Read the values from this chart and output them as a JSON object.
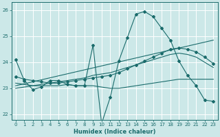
{
  "xlabel": "Humidex (Indice chaleur)",
  "bg_color": "#cce8e8",
  "grid_color": "#ffffff",
  "line_color": "#1a6b6b",
  "xlim": [
    -0.5,
    23.5
  ],
  "ylim": [
    21.8,
    26.3
  ],
  "yticks": [
    22,
    23,
    24,
    25,
    26
  ],
  "xticks": [
    0,
    1,
    2,
    3,
    4,
    5,
    6,
    7,
    8,
    9,
    10,
    11,
    12,
    13,
    14,
    15,
    16,
    17,
    18,
    19,
    20,
    21,
    22,
    23
  ],
  "line1_x": [
    0,
    1,
    2,
    3,
    4,
    5,
    6,
    7,
    8,
    9,
    10,
    11,
    12,
    13,
    14,
    15,
    16,
    17,
    18,
    19,
    20,
    21,
    22,
    23
  ],
  "line1_y": [
    24.1,
    23.3,
    22.95,
    23.05,
    23.3,
    23.3,
    23.15,
    23.1,
    23.1,
    24.65,
    21.65,
    22.65,
    24.05,
    24.95,
    25.85,
    25.95,
    25.75,
    25.3,
    24.85,
    24.05,
    23.5,
    23.1,
    22.55,
    22.5
  ],
  "line2_x": [
    0,
    1,
    2,
    3,
    4,
    5,
    6,
    7,
    8,
    9,
    10,
    11,
    12,
    13,
    14,
    15,
    16,
    17,
    18,
    19,
    20,
    21,
    22,
    23
  ],
  "line2_y": [
    23.45,
    23.35,
    23.3,
    23.25,
    23.2,
    23.2,
    23.25,
    23.3,
    23.35,
    23.4,
    23.45,
    23.5,
    23.6,
    23.75,
    23.9,
    24.05,
    24.2,
    24.35,
    24.5,
    24.55,
    24.5,
    24.4,
    24.2,
    23.95
  ],
  "line3_x": [
    0,
    1,
    2,
    3,
    4,
    5,
    6,
    7,
    8,
    9,
    10,
    11,
    12,
    13,
    14,
    15,
    16,
    17,
    18,
    19,
    20,
    21,
    22,
    23
  ],
  "line3_y": [
    23.2,
    23.15,
    23.1,
    23.1,
    23.1,
    23.1,
    23.15,
    23.1,
    23.1,
    23.1,
    23.05,
    23.0,
    23.0,
    23.05,
    23.1,
    23.15,
    23.2,
    23.25,
    23.3,
    23.35,
    23.35,
    23.35,
    23.35,
    23.35
  ],
  "line4_x": [
    0,
    23
  ],
  "line4_y": [
    23.1,
    24.85
  ],
  "line5_x": [
    0,
    1,
    2,
    3,
    4,
    5,
    6,
    7,
    8,
    9,
    10,
    11,
    12,
    13,
    14,
    15,
    16,
    17,
    18,
    19,
    20,
    21,
    22,
    23
  ],
  "line5_y": [
    23.0,
    23.05,
    23.1,
    23.15,
    23.2,
    23.25,
    23.3,
    23.35,
    23.4,
    23.5,
    23.55,
    23.6,
    23.7,
    23.8,
    23.9,
    24.0,
    24.1,
    24.2,
    24.3,
    24.35,
    24.3,
    24.2,
    24.0,
    23.8
  ]
}
